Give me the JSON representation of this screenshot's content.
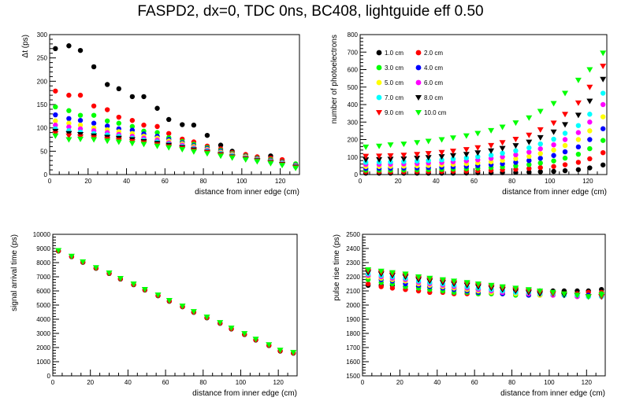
{
  "title": "FASPD2, dx=0, TDC 0ns, BC408, lightguide eff 0.50",
  "colors": {
    "1.0 cm": "#000000",
    "2.0 cm": "#ff0000",
    "3.0 cm": "#00ff00",
    "4.0 cm": "#0000ff",
    "5.0 cm": "#ffff00",
    "6.0 cm": "#ff00ff",
    "7.0 cm": "#00ffff",
    "8.0 cm": "#000000",
    "9.0 cm": "#ff0000",
    "10.0 cm": "#00ff00"
  },
  "chart_data": [
    {
      "type": "scatter",
      "title": "",
      "xlabel": "distance from inner edge (cm)",
      "ylabel": "Δt  (ps)",
      "xlim": [
        0,
        130
      ],
      "ylim": [
        0,
        300
      ],
      "xticks": [
        0,
        20,
        40,
        60,
        80,
        100,
        120
      ],
      "yticks": [
        0,
        50,
        100,
        150,
        200,
        250,
        300
      ],
      "x": [
        3,
        10,
        16,
        23,
        30,
        36,
        43,
        49,
        56,
        62,
        69,
        75,
        82,
        89,
        95,
        102,
        108,
        115,
        121,
        128
      ],
      "series": [
        {
          "name": "1.0 cm",
          "marker": "circle",
          "values": [
            270,
            276,
            266,
            231,
            193,
            184,
            167,
            167,
            142,
            118,
            107,
            106,
            84,
            63,
            50,
            40,
            35,
            40,
            29,
            17
          ]
        },
        {
          "name": "2.0 cm",
          "marker": "circle",
          "values": [
            179,
            170,
            170,
            147,
            139,
            123,
            116,
            106,
            103,
            88,
            76,
            70,
            61,
            55,
            47,
            43,
            38,
            35,
            32,
            18
          ]
        },
        {
          "name": "3.0 cm",
          "marker": "circle",
          "values": [
            145,
            137,
            127,
            127,
            115,
            110,
            103,
            93,
            90,
            79,
            71,
            65,
            58,
            52,
            45,
            40,
            35,
            32,
            27,
            23
          ]
        },
        {
          "name": "4.0 cm",
          "marker": "circle",
          "values": [
            128,
            120,
            116,
            110,
            104,
            98,
            95,
            87,
            82,
            75,
            68,
            62,
            56,
            50,
            44,
            39,
            34,
            30,
            26,
            20
          ]
        },
        {
          "name": "5.0 cm",
          "marker": "circle",
          "values": [
            115,
            110,
            106,
            100,
            96,
            92,
            88,
            82,
            78,
            72,
            66,
            60,
            54,
            48,
            43,
            38,
            33,
            29,
            25,
            19
          ]
        },
        {
          "name": "6.0 cm",
          "marker": "circle",
          "values": [
            106,
            102,
            98,
            94,
            90,
            86,
            82,
            78,
            74,
            68,
            63,
            57,
            52,
            46,
            41,
            36,
            32,
            28,
            24,
            18
          ]
        },
        {
          "name": "7.0 cm",
          "marker": "circle",
          "values": [
            98,
            94,
            91,
            88,
            85,
            82,
            78,
            74,
            70,
            65,
            60,
            55,
            50,
            45,
            40,
            35,
            31,
            27,
            23,
            17
          ]
        },
        {
          "name": "8.0 cm",
          "marker": "triangle-down",
          "values": [
            93,
            88,
            86,
            83,
            80,
            78,
            75,
            71,
            67,
            63,
            58,
            53,
            48,
            43,
            38,
            34,
            30,
            26,
            22,
            16
          ]
        },
        {
          "name": "9.0 cm",
          "marker": "triangle-down",
          "values": [
            88,
            83,
            81,
            79,
            76,
            74,
            71,
            68,
            64,
            60,
            56,
            51,
            47,
            42,
            37,
            33,
            29,
            25,
            21,
            15
          ]
        },
        {
          "name": "10.0 cm",
          "marker": "triangle-down",
          "values": [
            83,
            75,
            76,
            75,
            72,
            70,
            67,
            65,
            61,
            58,
            54,
            49,
            45,
            40,
            36,
            32,
            28,
            24,
            20,
            14
          ]
        }
      ]
    },
    {
      "type": "scatter",
      "title": "",
      "xlabel": "distance from inner edge (cm)",
      "ylabel": "number of photoelectrons",
      "xlim": [
        0,
        130
      ],
      "ylim": [
        0,
        800
      ],
      "xticks": [
        0,
        20,
        40,
        60,
        80,
        100,
        120
      ],
      "yticks": [
        0,
        100,
        200,
        300,
        400,
        500,
        600,
        700,
        800
      ],
      "legend": "top-left",
      "x": [
        3,
        10,
        16,
        23,
        30,
        36,
        43,
        49,
        56,
        62,
        69,
        75,
        82,
        89,
        95,
        102,
        108,
        115,
        121,
        128
      ],
      "series": [
        {
          "name": "1.0 cm",
          "marker": "circle",
          "values": [
            8,
            8,
            8,
            8,
            8,
            8,
            8,
            8,
            9,
            10,
            10,
            11,
            12,
            14,
            16,
            18,
            22,
            28,
            38,
            55
          ]
        },
        {
          "name": "2.0 cm",
          "marker": "circle",
          "values": [
            16,
            16,
            16,
            16,
            17,
            17,
            18,
            19,
            20,
            22,
            24,
            27,
            30,
            35,
            40,
            46,
            56,
            70,
            90,
            125
          ]
        },
        {
          "name": "3.0 cm",
          "marker": "circle",
          "values": [
            25,
            25,
            25,
            26,
            27,
            28,
            29,
            31,
            33,
            36,
            40,
            44,
            50,
            57,
            66,
            78,
            94,
            116,
            148,
            195
          ]
        },
        {
          "name": "4.0 cm",
          "marker": "circle",
          "values": [
            35,
            35,
            36,
            37,
            38,
            40,
            42,
            44,
            47,
            51,
            56,
            62,
            70,
            80,
            93,
            109,
            130,
            158,
            200,
            262
          ]
        },
        {
          "name": "5.0 cm",
          "marker": "circle",
          "values": [
            46,
            46,
            47,
            48,
            50,
            52,
            55,
            58,
            62,
            67,
            73,
            81,
            91,
            104,
            120,
            140,
            166,
            200,
            250,
            330
          ]
        },
        {
          "name": "6.0 cm",
          "marker": "circle",
          "values": [
            58,
            58,
            59,
            61,
            63,
            66,
            69,
            73,
            78,
            84,
            92,
            101,
            113,
            128,
            147,
            170,
            200,
            240,
            300,
            400
          ]
        },
        {
          "name": "7.0 cm",
          "marker": "circle",
          "values": [
            70,
            71,
            72,
            74,
            77,
            80,
            84,
            89,
            95,
            102,
            111,
            122,
            136,
            153,
            175,
            202,
            236,
            280,
            345,
            465
          ]
        },
        {
          "name": "8.0 cm",
          "marker": "triangle-down",
          "values": [
            85,
            86,
            88,
            90,
            94,
            98,
            103,
            109,
            116,
            125,
            136,
            150,
            166,
            186,
            212,
            244,
            286,
            340,
            420,
            545
          ]
        },
        {
          "name": "9.0 cm",
          "marker": "triangle-down",
          "values": [
            105,
            106,
            108,
            111,
            116,
            121,
            127,
            134,
            143,
            154,
            167,
            183,
            202,
            226,
            257,
            295,
            345,
            410,
            500,
            620
          ]
        },
        {
          "name": "10.0 cm",
          "marker": "triangle-down",
          "values": [
            158,
            163,
            170,
            175,
            183,
            191,
            200,
            210,
            222,
            236,
            252,
            272,
            296,
            325,
            362,
            407,
            465,
            540,
            600,
            695
          ]
        }
      ]
    },
    {
      "type": "scatter",
      "title": "",
      "xlabel": "distance from inner edge (cm)",
      "ylabel": "signal arrival time (ps)",
      "xlim": [
        0,
        130
      ],
      "ylim": [
        0,
        10000
      ],
      "xticks": [
        0,
        20,
        40,
        60,
        80,
        100,
        120
      ],
      "yticks": [
        0,
        1000,
        2000,
        3000,
        4000,
        5000,
        6000,
        7000,
        8000,
        9000,
        10000
      ],
      "x": [
        3,
        10,
        16,
        23,
        30,
        36,
        43,
        49,
        56,
        62,
        69,
        75,
        82,
        89,
        95,
        102,
        108,
        115,
        121,
        128
      ],
      "series": [
        {
          "name": "1.0 cm",
          "marker": "circle",
          "values": [
            8820,
            8420,
            8020,
            7600,
            7230,
            6840,
            6440,
            6060,
            5660,
            5270,
            4880,
            4490,
            4100,
            3710,
            3310,
            2920,
            2530,
            2140,
            1750,
            1600
          ]
        },
        {
          "name": "2.0 cm",
          "marker": "circle",
          "values": [
            8840,
            8440,
            8040,
            7620,
            7250,
            6860,
            6460,
            6080,
            5680,
            5290,
            4900,
            4510,
            4120,
            3730,
            3330,
            2940,
            2550,
            2160,
            1770,
            1620
          ]
        },
        {
          "name": "10.0 cm",
          "marker": "triangle-down",
          "values": [
            8860,
            8460,
            8060,
            7650,
            7280,
            6890,
            6500,
            6110,
            5720,
            5330,
            4940,
            4550,
            4160,
            3770,
            3380,
            2990,
            2600,
            2210,
            1820,
            1660
          ]
        }
      ]
    },
    {
      "type": "scatter",
      "title": "",
      "xlabel": "distance from inner edge (cm)",
      "ylabel": "pulse rise time (ps)",
      "xlim": [
        0,
        130
      ],
      "ylim": [
        1500,
        2500
      ],
      "xticks": [
        0,
        20,
        40,
        60,
        80,
        100,
        120
      ],
      "yticks": [
        1500,
        1600,
        1700,
        1800,
        1900,
        2000,
        2100,
        2200,
        2300,
        2400,
        2500
      ],
      "x": [
        3,
        10,
        16,
        23,
        30,
        36,
        43,
        49,
        56,
        62,
        69,
        75,
        82,
        89,
        95,
        102,
        108,
        115,
        121,
        128
      ],
      "series": [
        {
          "name": "1.0 cm",
          "marker": "circle",
          "values": [
            2140,
            2140,
            2140,
            2130,
            2130,
            2130,
            2120,
            2120,
            2110,
            2110,
            2110,
            2100,
            2100,
            2100,
            2100,
            2100,
            2100,
            2100,
            2100,
            2110
          ]
        },
        {
          "name": "2.0 cm",
          "marker": "circle",
          "values": [
            2150,
            2130,
            2120,
            2110,
            2100,
            2090,
            2090,
            2080,
            2080,
            2080,
            2080,
            2080,
            2080,
            2080,
            2080,
            2080,
            2080,
            2080,
            2090,
            2090
          ]
        },
        {
          "name": "3.0 cm",
          "marker": "circle",
          "values": [
            2180,
            2160,
            2150,
            2130,
            2120,
            2110,
            2100,
            2090,
            2090,
            2080,
            2080,
            2080,
            2070,
            2070,
            2070,
            2070,
            2070,
            2070,
            2070,
            2080
          ]
        },
        {
          "name": "4.0 cm",
          "marker": "circle",
          "values": [
            2200,
            2180,
            2170,
            2150,
            2140,
            2130,
            2120,
            2110,
            2100,
            2090,
            2090,
            2080,
            2080,
            2070,
            2070,
            2070,
            2070,
            2070,
            2070,
            2070
          ]
        },
        {
          "name": "5.0 cm",
          "marker": "circle",
          "values": [
            2200,
            2190,
            2180,
            2170,
            2150,
            2140,
            2130,
            2120,
            2110,
            2100,
            2090,
            2090,
            2080,
            2080,
            2070,
            2070,
            2070,
            2060,
            2060,
            2060
          ]
        },
        {
          "name": "6.0 cm",
          "marker": "circle",
          "values": [
            2210,
            2200,
            2190,
            2180,
            2160,
            2150,
            2140,
            2130,
            2120,
            2110,
            2100,
            2090,
            2090,
            2080,
            2080,
            2070,
            2070,
            2060,
            2060,
            2060
          ]
        },
        {
          "name": "7.0 cm",
          "marker": "circle",
          "values": [
            2220,
            2210,
            2200,
            2190,
            2170,
            2160,
            2150,
            2140,
            2130,
            2120,
            2110,
            2100,
            2090,
            2090,
            2080,
            2080,
            2070,
            2070,
            2060,
            2060
          ]
        },
        {
          "name": "8.0 cm",
          "marker": "triangle-down",
          "values": [
            2230,
            2220,
            2210,
            2200,
            2180,
            2170,
            2160,
            2150,
            2140,
            2130,
            2120,
            2110,
            2100,
            2090,
            2080,
            2080,
            2070,
            2070,
            2060,
            2060
          ]
        },
        {
          "name": "9.0 cm",
          "marker": "triangle-down",
          "values": [
            2240,
            2230,
            2220,
            2210,
            2190,
            2180,
            2170,
            2160,
            2150,
            2140,
            2130,
            2120,
            2110,
            2100,
            2090,
            2080,
            2080,
            2070,
            2060,
            2060
          ]
        },
        {
          "name": "10.0 cm",
          "marker": "triangle-down",
          "values": [
            2250,
            2240,
            2230,
            2220,
            2200,
            2190,
            2180,
            2170,
            2160,
            2150,
            2140,
            2130,
            2120,
            2110,
            2100,
            2090,
            2080,
            2070,
            2060,
            2070
          ]
        }
      ]
    }
  ]
}
